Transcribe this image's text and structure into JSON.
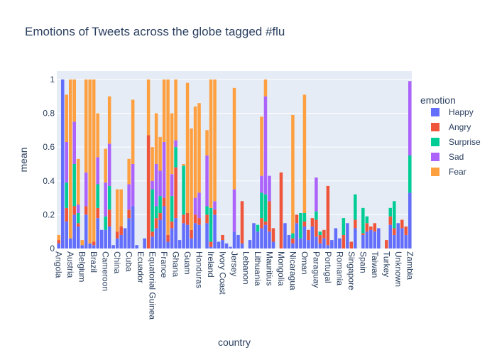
{
  "chart_data": {
    "type": "bar",
    "barmode": "stack",
    "title": "Emotions of Tweets across the globe tagged #flu",
    "xlabel": "country",
    "ylabel": "mean",
    "ylim": [
      0,
      1.05
    ],
    "yticks": [
      0,
      0.2,
      0.4,
      0.6,
      0.8,
      1
    ],
    "grid": true,
    "legend_title": "emotion",
    "legend_position": "right",
    "labeled_categories": [
      "Angola",
      "Austria",
      "Belgium",
      "Brazil",
      "Cameroon",
      "China",
      "Cuba",
      "Ecuador",
      "Equatorial Guinea",
      "France",
      "Ghana",
      "Guam",
      "Honduras",
      "Ireland",
      "Ivory Coast",
      "Jersey",
      "Lebanon",
      "Lithuania",
      "Mauritius",
      "Mongolia",
      "Nicaragua",
      "Oman",
      "Paraguay",
      "Portugal",
      "Romania",
      "Singapore",
      "Spain",
      "Taiwan",
      "Turkey",
      "Unknown",
      "Zambia"
    ],
    "series": [
      {
        "name": "Happy",
        "color": "#636efa",
        "values": [
          0.03,
          1.0,
          0.16,
          0.06,
          0.2,
          0.13,
          0.02,
          0.2,
          0.03,
          0.02,
          0.18,
          0.11,
          0.11,
          0.13,
          0.02,
          0.06,
          0.08,
          0.12,
          0.18,
          0.25,
          0.02,
          0.0,
          0.06,
          0.0,
          0.07,
          0.12,
          0.17,
          0.25,
          0.04,
          0.12,
          0.18,
          0.05,
          0.15,
          0.14,
          0.06,
          0.15,
          0.14,
          0.0,
          0.15,
          0.01,
          0.2,
          0.04,
          0.05,
          0.03,
          0.01,
          0.1,
          0.08,
          0.03,
          0.0,
          0.05,
          0.15,
          0.1,
          0.12,
          0.14,
          0.1,
          0.04,
          0.0,
          0.0,
          0.15,
          0.08,
          0.03,
          0.15,
          0.06,
          0.13,
          0.05,
          0.13,
          0.07,
          0.03,
          0.06,
          0.02,
          0.05,
          0.12,
          0.06,
          0.0,
          0.15,
          0.0,
          0.12,
          0.0,
          0.08,
          0.1,
          0.11,
          0.1,
          0.12,
          0.0,
          0.0,
          0.14,
          0.08,
          0.15,
          0.12,
          0.08,
          0.33
        ]
      },
      {
        "name": "Angry",
        "color": "#ef553b",
        "values": [
          0.02,
          0.0,
          0.08,
          0.0,
          0.05,
          0.02,
          0.0,
          0.05,
          0.0,
          0.02,
          0.06,
          0.0,
          0.0,
          0.1,
          0.0,
          0.04,
          0.05,
          0.0,
          0.05,
          0.0,
          0.0,
          0.0,
          0.0,
          0.67,
          0.03,
          0.06,
          0.04,
          0.05,
          0.04,
          0.04,
          0.3,
          0.0,
          0.05,
          0.07,
          0.05,
          0.05,
          0.04,
          0.0,
          0.05,
          0.03,
          0.03,
          0.0,
          0.03,
          0.0,
          0.0,
          0.0,
          0.0,
          0.25,
          0.0,
          0.0,
          0.0,
          0.0,
          0.06,
          0.02,
          0.18,
          0.08,
          0.0,
          0.45,
          0.0,
          0.0,
          0.03,
          0.05,
          0.0,
          0.03,
          0.06,
          0.05,
          0.1,
          0.05,
          0.05,
          0.35,
          0.0,
          0.0,
          0.0,
          0.08,
          0.0,
          0.04,
          0.05,
          0.0,
          0.01,
          0.05,
          0.02,
          0.05,
          0.0,
          0.0,
          0.05,
          0.05,
          0.04,
          0.0,
          0.05,
          0.05,
          0.0
        ]
      },
      {
        "name": "Surprise",
        "color": "#00cc96",
        "values": [
          0.0,
          0.0,
          0.15,
          0.0,
          0.25,
          0.06,
          0.0,
          0.0,
          0.0,
          0.0,
          0.14,
          0.0,
          0.08,
          0.14,
          0.0,
          0.0,
          0.0,
          0.0,
          0.0,
          0.0,
          0.0,
          0.0,
          0.0,
          0.0,
          0.25,
          0.07,
          0.1,
          0.0,
          0.0,
          0.15,
          0.12,
          0.0,
          0.29,
          0.0,
          0.0,
          0.0,
          0.0,
          0.0,
          0.05,
          0.2,
          0.0,
          0.0,
          0.0,
          0.0,
          0.0,
          0.0,
          0.0,
          0.0,
          0.0,
          0.0,
          0.0,
          0.04,
          0.15,
          0.16,
          0.0,
          0.0,
          0.0,
          0.0,
          0.0,
          0.0,
          0.03,
          0.0,
          0.15,
          0.05,
          0.0,
          0.0,
          0.05,
          0.02,
          0.0,
          0.0,
          0.0,
          0.0,
          0.0,
          0.1,
          0.0,
          0.0,
          0.15,
          0.0,
          0.15,
          0.04,
          0.0,
          0.0,
          0.0,
          0.0,
          0.0,
          0.05,
          0.16,
          0.0,
          0.0,
          0.0,
          0.22
        ]
      },
      {
        "name": "Sad",
        "color": "#ab63fa",
        "values": [
          0.0,
          0.0,
          0.24,
          0.0,
          0.25,
          0.05,
          0.0,
          0.2,
          0.0,
          0.0,
          0.16,
          0.0,
          0.2,
          0.25,
          0.0,
          0.0,
          0.0,
          0.0,
          0.15,
          0.25,
          0.0,
          0.0,
          0.0,
          0.0,
          0.05,
          0.25,
          0.15,
          0.33,
          0.0,
          0.13,
          0.04,
          0.0,
          0.0,
          0.0,
          0.0,
          0.1,
          0.15,
          0.0,
          0.3,
          0.0,
          0.05,
          0.0,
          0.0,
          0.0,
          0.0,
          0.25,
          0.0,
          0.0,
          0.0,
          0.0,
          0.0,
          0.0,
          0.1,
          0.58,
          0.15,
          0.0,
          0.0,
          0.0,
          0.0,
          0.0,
          0.0,
          0.0,
          0.0,
          0.0,
          0.0,
          0.0,
          0.2,
          0.0,
          0.0,
          0.0,
          0.0,
          0.0,
          0.0,
          0.0,
          0.0,
          0.0,
          0.0,
          0.0,
          0.0,
          0.0,
          0.0,
          0.0,
          0.0,
          0.0,
          0.0,
          0.0,
          0.0,
          0.0,
          0.0,
          0.0,
          0.44
        ]
      },
      {
        "name": "Fear",
        "color": "#fea040",
        "values": [
          0.03,
          0.0,
          0.28,
          0.94,
          0.25,
          0.27,
          0.03,
          0.55,
          0.97,
          0.96,
          0.26,
          0.0,
          0.2,
          0.28,
          0.0,
          0.25,
          0.22,
          0.0,
          0.15,
          0.38,
          0.0,
          0.0,
          0.0,
          0.33,
          0.2,
          0.3,
          0.2,
          0.37,
          0.92,
          0.36,
          0.36,
          0.0,
          0.01,
          0.77,
          0.6,
          0.54,
          0.53,
          0.0,
          0.15,
          0.76,
          0.72,
          0.0,
          0.0,
          0.0,
          0.0,
          0.6,
          0.0,
          0.0,
          0.0,
          0.0,
          0.0,
          0.0,
          0.35,
          0.1,
          0.0,
          0.0,
          0.0,
          0.0,
          0.0,
          0.0,
          0.7,
          0.0,
          0.0,
          0.7,
          0.0,
          0.0,
          0.0,
          0.0,
          0.0,
          0.0,
          0.0,
          0.0,
          0.0,
          0.0,
          0.0,
          0.0,
          0.0,
          0.0,
          0.0,
          0.0,
          0.0,
          0.0,
          0.0,
          0.0,
          0.0,
          0.0,
          0.0,
          0.0,
          0.0,
          0.0,
          0.0
        ]
      }
    ]
  }
}
